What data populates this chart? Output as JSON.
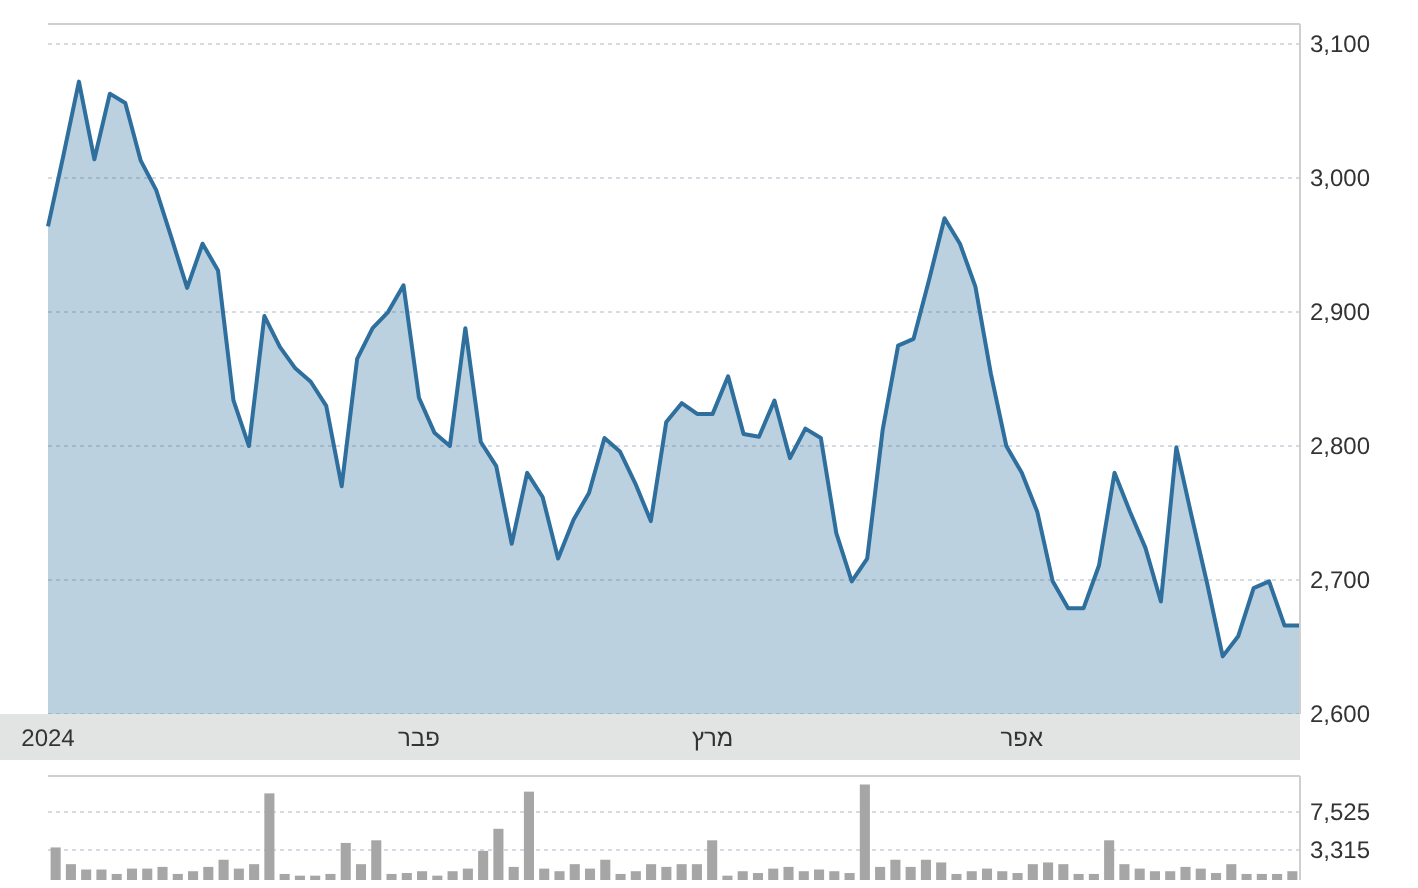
{
  "chart_data": [
    {
      "type": "area",
      "categories": [
        "2024",
        null,
        null,
        null,
        null,
        null,
        null,
        null,
        null,
        null,
        null,
        null,
        null,
        null,
        null,
        null,
        null,
        null,
        null,
        null,
        null,
        null,
        null,
        null,
        "פבר",
        null,
        null,
        null,
        null,
        null,
        null,
        null,
        null,
        null,
        null,
        null,
        null,
        null,
        null,
        null,
        null,
        null,
        null,
        "מרץ",
        null,
        null,
        null,
        null,
        null,
        null,
        null,
        null,
        null,
        null,
        null,
        null,
        null,
        null,
        null,
        null,
        null,
        null,
        null,
        "אפר",
        null,
        null,
        null,
        null,
        null,
        null,
        null,
        null,
        null,
        null,
        null,
        null,
        null,
        null,
        null,
        null,
        null,
        null
      ],
      "series": [
        {
          "color": "#2e6f9e",
          "values": [
            2964,
            3017,
            3072,
            3014,
            3063,
            3056,
            3013,
            2991,
            2955,
            2918,
            2951,
            2931,
            2834,
            2800,
            2897,
            2874,
            2858,
            2848,
            2830,
            2770,
            2865,
            2888,
            2900,
            2920,
            2836,
            2810,
            2800,
            2888,
            2803,
            2785,
            2727,
            2780,
            2762,
            2716,
            2745,
            2765,
            2806,
            2796,
            2772,
            2744,
            2818,
            2832,
            2824,
            2824,
            2852,
            2809,
            2807,
            2834,
            2791,
            2813,
            2806,
            2735,
            2699,
            2716,
            2812,
            2875,
            2880,
            2924,
            2970,
            2951,
            2919,
            2854,
            2800,
            2780,
            2751,
            2699,
            2679,
            2679,
            2711,
            2780,
            2751,
            2724,
            2684,
            2799,
            2747,
            2697,
            2643,
            2658,
            2694,
            2699,
            2666,
            2666
          ]
        }
      ],
      "ylim": [
        2600,
        3115
      ],
      "yticks": [
        {
          "value": 2600,
          "label": "2,600"
        },
        {
          "value": 2700,
          "label": "2,700"
        },
        {
          "value": 2800,
          "label": "2,800"
        },
        {
          "value": 2900,
          "label": "2,900"
        },
        {
          "value": 3000,
          "label": "3,000"
        },
        {
          "value": 3100,
          "label": "3,100"
        }
      ],
      "grid": "y"
    },
    {
      "type": "bar",
      "categories": [
        null,
        null,
        null,
        null,
        null,
        null,
        null,
        null,
        null,
        null,
        null,
        null,
        null,
        null,
        null,
        null,
        null,
        null,
        null,
        null,
        null,
        null,
        null,
        null,
        null,
        null,
        null,
        null,
        null,
        null,
        null,
        null,
        null,
        null,
        null,
        null,
        null,
        null,
        null,
        null,
        null,
        null,
        null,
        null,
        null,
        null,
        null,
        null,
        null,
        null,
        null,
        null,
        null,
        null,
        null,
        null,
        null,
        null,
        null,
        null,
        null,
        null,
        null,
        null,
        null,
        null,
        null,
        null,
        null,
        null,
        null,
        null,
        null,
        null,
        null,
        null,
        null,
        null,
        null,
        null,
        null,
        null
      ],
      "series": [
        {
          "color": "#a6a6a6",
          "values": [
            3600,
            1750,
            1160,
            1160,
            670,
            1260,
            1260,
            1450,
            670,
            970,
            1450,
            2240,
            1260,
            1750,
            9580,
            670,
            480,
            480,
            670,
            4100,
            1750,
            4390,
            670,
            770,
            970,
            480,
            970,
            1260,
            3220,
            5660,
            1450,
            9770,
            1260,
            970,
            1750,
            1260,
            2240,
            670,
            970,
            1750,
            1450,
            1750,
            1750,
            4390,
            480,
            970,
            770,
            1260,
            1450,
            970,
            1160,
            970,
            770,
            10560,
            1450,
            2240,
            1450,
            2240,
            1940,
            670,
            970,
            1260,
            970,
            770,
            1750,
            1940,
            1750,
            670,
            670,
            4390,
            1750,
            1260,
            970,
            970,
            1450,
            1260,
            770,
            1750,
            670,
            670,
            670,
            970
          ]
        }
      ],
      "ylim": [
        0,
        11500
      ],
      "yticks": [
        {
          "value": 3315,
          "label": "3,315"
        },
        {
          "value": 7525,
          "label": "7,525"
        }
      ],
      "grid": "y",
      "tick_labels": "y"
    }
  ]
}
